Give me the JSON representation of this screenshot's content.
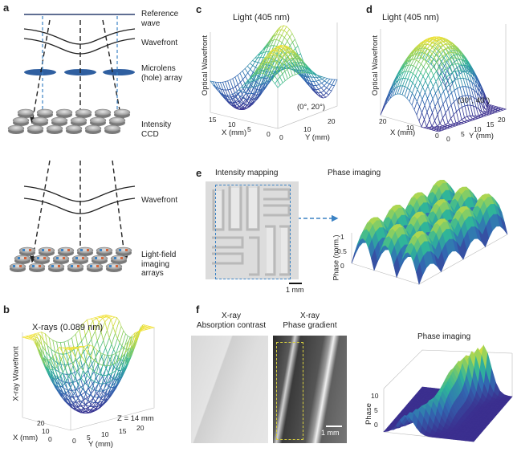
{
  "panels": {
    "a": {
      "label": "a",
      "reference_wave": "Reference\nwave",
      "wavefront_1": "Wavefront",
      "microlens": "Microlens\n(hole) array",
      "intensity_ccd": "Intensity\nCCD",
      "wavefront_2": "Wavefront",
      "light_field": "Light-field\nimaging\narrays"
    },
    "b": {
      "label": "b",
      "title": "X-rays (0.089 nm)",
      "zlabel": "X-ray Wavefront",
      "xlabel": "X (mm)",
      "ylabel": "Y (mm)",
      "note": "Z = 14 mm",
      "x_ticks": [
        "0",
        "10",
        "20"
      ],
      "y_ticks": [
        "0",
        "5",
        "10",
        "15",
        "20"
      ]
    },
    "c": {
      "label": "c",
      "title": "Light (405 nm)",
      "zlabel": "Optical Wavefront",
      "xlabel": "X (mm)",
      "ylabel": "Y (mm)",
      "view": "(0°, 20°)",
      "x_ticks": [
        "15",
        "10",
        "5",
        "0"
      ],
      "y_ticks": [
        "0",
        "10",
        "20"
      ]
    },
    "d": {
      "label": "d",
      "title": "Light (405 nm)",
      "zlabel": "Optical Wavefront",
      "xlabel": "X (mm)",
      "ylabel": "Y (mm)",
      "view": "(30°, 40°)",
      "x_ticks": [
        "20",
        "10",
        "0"
      ],
      "y_ticks": [
        "0",
        "5",
        "10",
        "15",
        "20"
      ]
    },
    "e": {
      "label": "e",
      "intensity_title": "Intensity mapping",
      "phase_title": "Phase imaging",
      "scalebar": "1 mm",
      "zlabel": "Phase (norm.)",
      "z_ticks": [
        "1",
        "0.5",
        "0"
      ]
    },
    "f": {
      "label": "f",
      "absorption_title": "X-ray\nAbsorption contrast",
      "gradient_title": "X-ray\nPhase gradient",
      "scalebar": "1 mm",
      "phase_title": "Phase imaging",
      "zlabel": "Phase",
      "z_ticks": [
        "10",
        "5",
        "0"
      ]
    }
  },
  "colors": {
    "reference_line": "#2a3f6e",
    "dashed_arrow": "#222222",
    "blue_dashed": "#3b82c4",
    "lens": "#2f5fa0",
    "pixel": "#9a9a9a",
    "surface_low": "#3b2f8f",
    "surface_mid": "#2fb59a",
    "surface_high": "#f2e23a"
  }
}
